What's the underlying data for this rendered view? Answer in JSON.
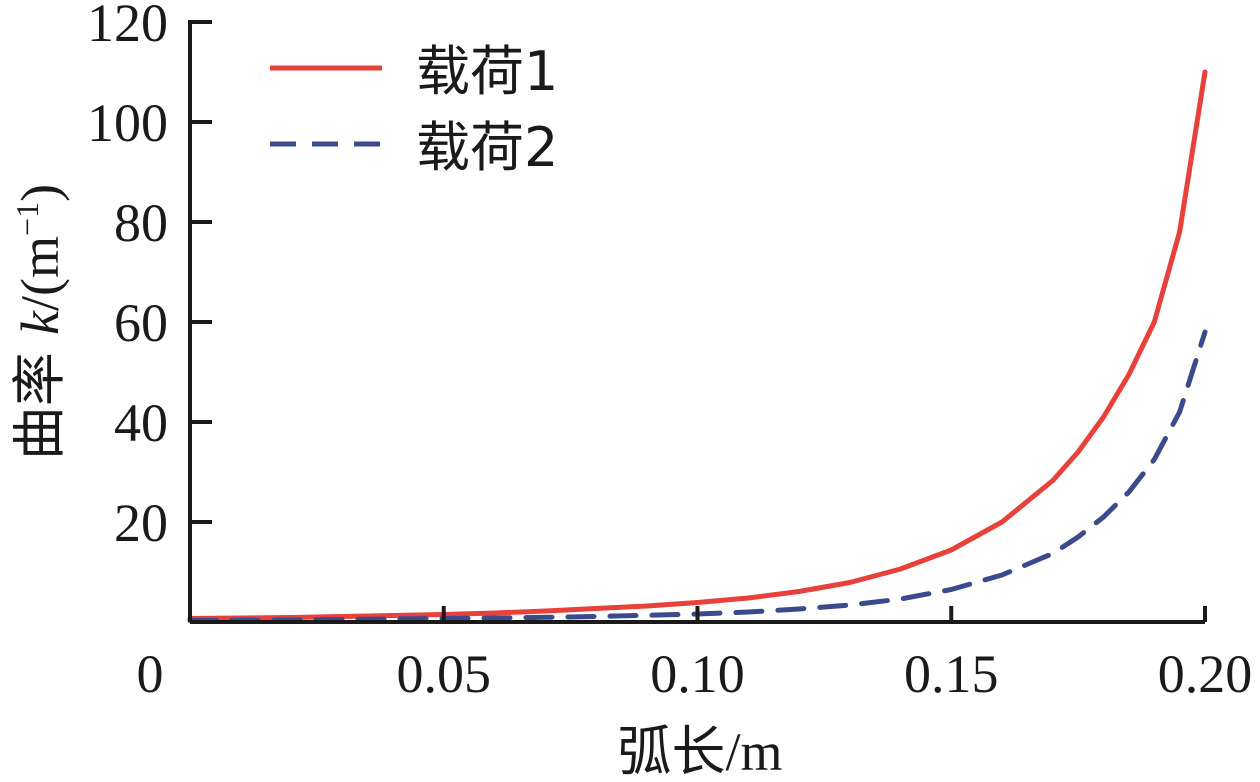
{
  "chart_data": {
    "type": "line",
    "xlabel_text": "弧长",
    "xlabel_unit": "/m",
    "ylabel_prefix": "曲率 ",
    "ylabel_var": "k",
    "ylabel_unit_open": "/(m",
    "ylabel_unit_sup": "−1",
    "ylabel_unit_close": ")",
    "xlim": [
      0,
      0.2
    ],
    "ylim": [
      0,
      120
    ],
    "x_ticks": [
      0,
      0.05,
      0.1,
      0.15,
      0.2
    ],
    "x_tick_labels": [
      "0",
      "0.05",
      "0.10",
      "0.15",
      "0.20"
    ],
    "y_ticks": [
      20,
      40,
      60,
      80,
      100,
      120
    ],
    "y_tick_labels": [
      "20",
      "40",
      "60",
      "80",
      "100",
      "120"
    ],
    "grid": false,
    "legend_position": "top-left",
    "series": [
      {
        "name": "载荷1",
        "color": "#e8403a",
        "dash": "solid",
        "x": [
          0,
          0.01,
          0.02,
          0.03,
          0.04,
          0.05,
          0.06,
          0.07,
          0.08,
          0.09,
          0.1,
          0.11,
          0.12,
          0.13,
          0.14,
          0.15,
          0.16,
          0.17,
          0.175,
          0.18,
          0.185,
          0.19,
          0.195,
          0.2
        ],
        "y": [
          0.7,
          0.8,
          0.9,
          1.1,
          1.3,
          1.5,
          1.8,
          2.2,
          2.7,
          3.2,
          3.9,
          4.8,
          6.1,
          7.9,
          10.6,
          14.4,
          20.0,
          28.3,
          34.0,
          41.0,
          49.5,
          60.0,
          78.0,
          110.0
        ]
      },
      {
        "name": "载荷2",
        "color": "#3b4a8c",
        "dash": "dashed",
        "x": [
          0,
          0.01,
          0.02,
          0.03,
          0.04,
          0.05,
          0.06,
          0.07,
          0.08,
          0.09,
          0.1,
          0.11,
          0.12,
          0.13,
          0.14,
          0.15,
          0.16,
          0.17,
          0.175,
          0.18,
          0.185,
          0.19,
          0.195,
          0.2
        ],
        "y": [
          0.3,
          0.35,
          0.4,
          0.5,
          0.6,
          0.7,
          0.8,
          0.95,
          1.1,
          1.35,
          1.6,
          2.0,
          2.6,
          3.4,
          4.6,
          6.5,
          9.4,
          13.7,
          17.0,
          21.0,
          26.0,
          32.5,
          42.0,
          58.0
        ]
      }
    ]
  }
}
